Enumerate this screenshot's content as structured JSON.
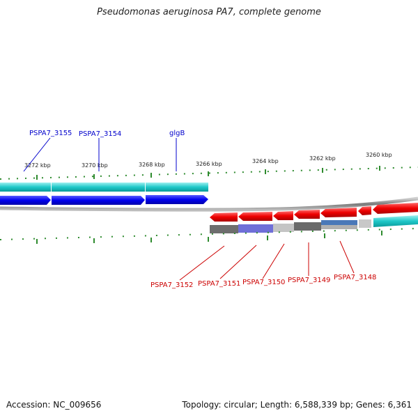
{
  "header": {
    "title": "Pseudomonas aeruginosa PA7, complete genome"
  },
  "footer": {
    "accession": "Accession: NC_009656",
    "summary": "Topology: circular; Length: 6,588,339 bp; Genes: 6,361"
  },
  "colors": {
    "forward_gene": "#0000ee",
    "reverse_gene": "#ee0000",
    "cds_teal": "#1ec8c8",
    "tick_green": "#228b22",
    "backbone_gray": "#888888",
    "forward_label": "#0000cc",
    "reverse_label": "#cc0000"
  },
  "scale": {
    "ticks": [
      {
        "label": "3272 kbp"
      },
      {
        "label": "3270 kbp"
      },
      {
        "label": "3268 kbp"
      },
      {
        "label": "3266 kbp"
      },
      {
        "label": "3264 kbp"
      },
      {
        "label": "3262 kbp"
      },
      {
        "label": "3260 kbp"
      }
    ]
  },
  "labels": {
    "forward": [
      {
        "name": "PSPA7_3155"
      },
      {
        "name": "PSPA7_3154"
      },
      {
        "name": "glgB"
      }
    ],
    "reverse": [
      {
        "name": "PSPA7_3152"
      },
      {
        "name": "PSPA7_3151"
      },
      {
        "name": "PSPA7_3150"
      },
      {
        "name": "PSPA7_3149"
      },
      {
        "name": "PSPA7_3148"
      }
    ]
  }
}
